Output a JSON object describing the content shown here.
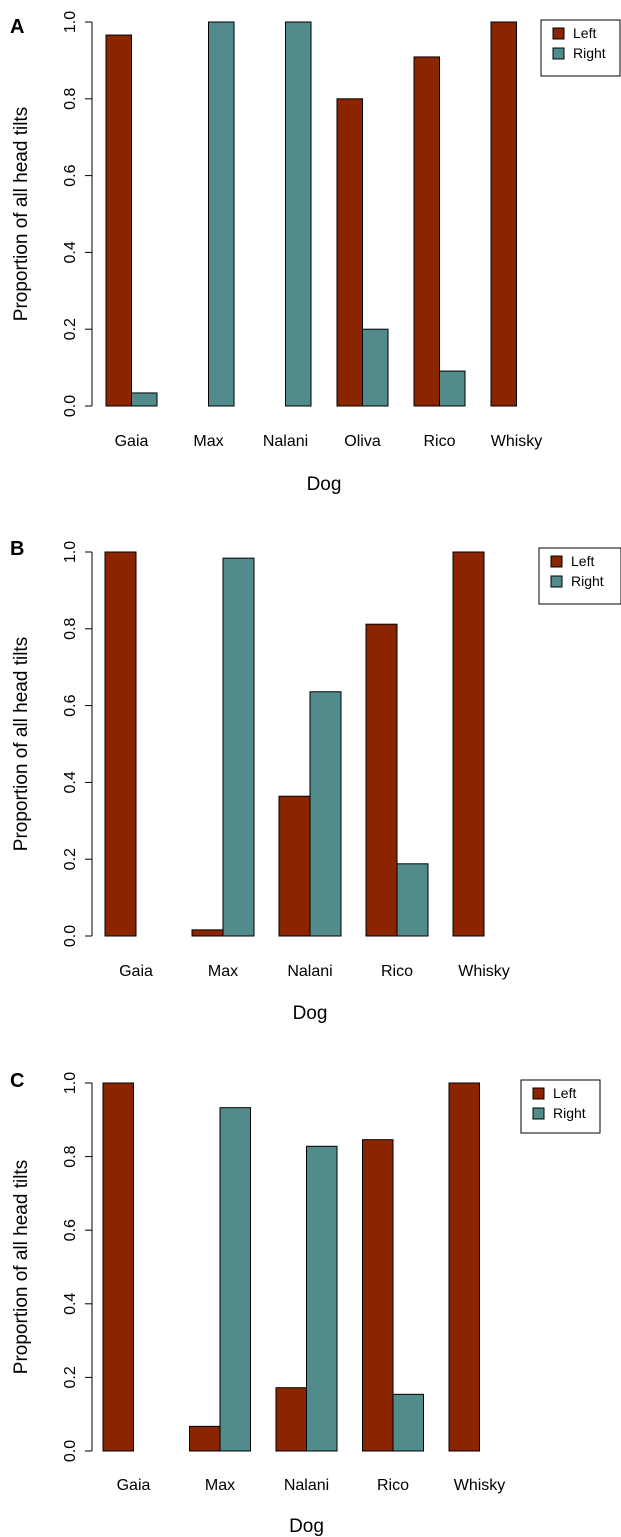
{
  "colors": {
    "left": "#8B2500",
    "right": "#528B8B"
  },
  "chart_data": [
    {
      "panel": "A",
      "type": "bar",
      "title": "",
      "xlabel": "Dog",
      "ylabel": "Proportion of all head tilts",
      "ylim": [
        0,
        1
      ],
      "yticks": [
        "0.0",
        "0.2",
        "0.4",
        "0.6",
        "0.8",
        "1.0"
      ],
      "categories": [
        "Gaia",
        "Max",
        "Nalani",
        "Oliva",
        "Rico",
        "Whisky"
      ],
      "series": [
        {
          "name": "Left",
          "values": [
            0.966,
            0,
            0,
            0.8,
            0.909,
            1.0
          ]
        },
        {
          "name": "Right",
          "values": [
            0.034,
            1.0,
            1.0,
            0.2,
            0.091,
            0
          ]
        }
      ],
      "legend": "top-right",
      "grid": false
    },
    {
      "panel": "B",
      "type": "bar",
      "title": "",
      "xlabel": "Dog",
      "ylabel": "Proportion of all head tilts",
      "ylim": [
        0,
        1
      ],
      "yticks": [
        "0.0",
        "0.2",
        "0.4",
        "0.6",
        "0.8",
        "1.0"
      ],
      "categories": [
        "Gaia",
        "Max",
        "Nalani",
        "Rico",
        "Whisky"
      ],
      "series": [
        {
          "name": "Left",
          "values": [
            1.0,
            0.016,
            0.364,
            0.812,
            1.0
          ]
        },
        {
          "name": "Right",
          "values": [
            0,
            0.984,
            0.636,
            0.188,
            0
          ]
        }
      ],
      "legend": "top-right",
      "grid": false
    },
    {
      "panel": "C",
      "type": "bar",
      "title": "",
      "xlabel": "Dog",
      "ylabel": "Proportion of all head tilts",
      "ylim": [
        0,
        1
      ],
      "yticks": [
        "0.0",
        "0.2",
        "0.4",
        "0.6",
        "0.8",
        "1.0"
      ],
      "categories": [
        "Gaia",
        "Max",
        "Nalani",
        "Rico",
        "Whisky"
      ],
      "series": [
        {
          "name": "Left",
          "values": [
            1.0,
            0.067,
            0.172,
            0.846,
            1.0
          ]
        },
        {
          "name": "Right",
          "values": [
            0,
            0.933,
            0.828,
            0.154,
            0
          ]
        }
      ],
      "legend": "top-right",
      "grid": false
    }
  ]
}
